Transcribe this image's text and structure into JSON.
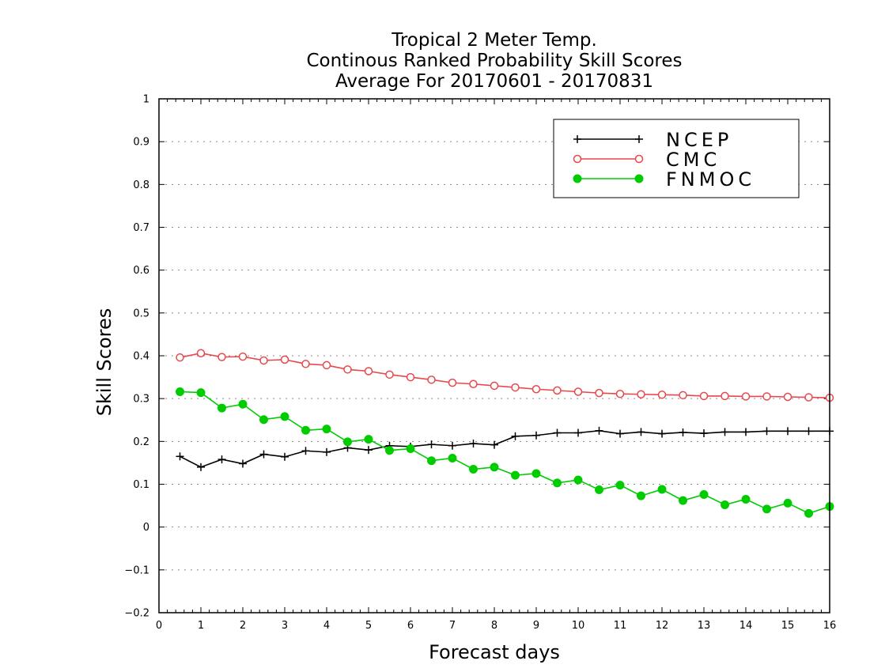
{
  "chart_data": {
    "type": "line",
    "title": [
      "Tropical 2 Meter Temp.",
      "Continous Ranked Probability Skill Scores",
      "Average For 20170601 - 20170831"
    ],
    "xlabel": "Forecast days",
    "ylabel": "Skill Scores",
    "xlim": [
      0,
      16
    ],
    "ylim": [
      -0.2,
      1
    ],
    "xticks": [
      "0",
      "1",
      "2",
      "3",
      "4",
      "5",
      "6",
      "7",
      "8",
      "9",
      "10",
      "11",
      "12",
      "13",
      "14",
      "15",
      "16"
    ],
    "yticks": [
      "−0.2",
      "−0.1",
      "0",
      "0.1",
      "0.2",
      "0.3",
      "0.4",
      "0.5",
      "0.6",
      "0.7",
      "0.8",
      "0.9",
      "1"
    ],
    "grid": "horizontal dotted",
    "legend_position": "top-right",
    "x": [
      0.5,
      1,
      1.5,
      2,
      2.5,
      3,
      3.5,
      4,
      4.5,
      5,
      5.5,
      6,
      6.5,
      7,
      7.5,
      8,
      8.5,
      9,
      9.5,
      10,
      10.5,
      11,
      11.5,
      12,
      12.5,
      13,
      13.5,
      14,
      14.5,
      15,
      15.5,
      16
    ],
    "series": [
      {
        "name": "NCEP",
        "color": "#000000",
        "marker": "plus",
        "values": [
          0.165,
          0.14,
          0.158,
          0.148,
          0.17,
          0.164,
          0.178,
          0.175,
          0.185,
          0.18,
          0.19,
          0.188,
          0.193,
          0.19,
          0.195,
          0.192,
          0.212,
          0.214,
          0.22,
          0.22,
          0.225,
          0.218,
          0.222,
          0.218,
          0.221,
          0.219,
          0.222,
          0.222,
          0.224,
          0.224,
          0.224,
          0.224
        ]
      },
      {
        "name": "CMC",
        "color": "#e8474c",
        "marker": "open-circle",
        "values": [
          0.396,
          0.406,
          0.397,
          0.398,
          0.389,
          0.391,
          0.381,
          0.378,
          0.368,
          0.364,
          0.356,
          0.35,
          0.344,
          0.337,
          0.334,
          0.33,
          0.326,
          0.322,
          0.319,
          0.316,
          0.313,
          0.311,
          0.31,
          0.309,
          0.308,
          0.306,
          0.306,
          0.305,
          0.305,
          0.304,
          0.303,
          0.302
        ]
      },
      {
        "name": "FNMOC",
        "color": "#00cc00",
        "marker": "filled-circle",
        "values": [
          0.316,
          0.314,
          0.278,
          0.287,
          0.251,
          0.258,
          0.226,
          0.229,
          0.199,
          0.205,
          0.179,
          0.183,
          0.155,
          0.161,
          0.135,
          0.14,
          0.121,
          0.125,
          0.103,
          0.11,
          0.087,
          0.098,
          0.073,
          0.088,
          0.062,
          0.076,
          0.052,
          0.065,
          0.042,
          0.056,
          0.032,
          0.048
        ]
      }
    ]
  }
}
